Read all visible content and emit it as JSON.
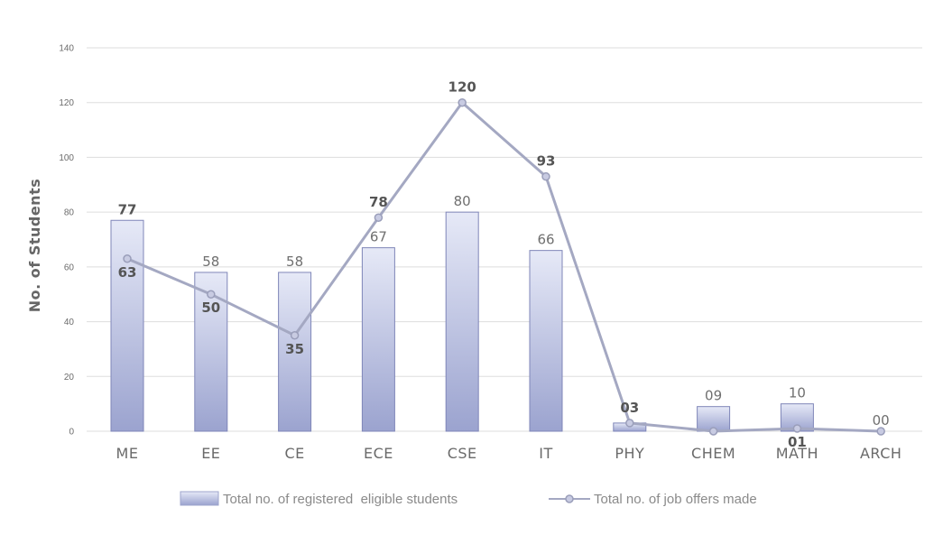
{
  "chart_data": {
    "type": "bar",
    "categories": [
      "ME",
      "EE",
      "CE",
      "ECE",
      "CSE",
      "IT",
      "PHY",
      "CHEM",
      "MATH",
      "ARCH"
    ],
    "series": [
      {
        "name": "Total no. of registered  eligible students",
        "type": "bar",
        "values": [
          77,
          58,
          58,
          67,
          80,
          66,
          3,
          9,
          10,
          0
        ],
        "labels": [
          "77",
          "58",
          "58",
          "67",
          "80",
          "66",
          "",
          "09",
          "10",
          "00"
        ]
      },
      {
        "name": "Total no. of job offers made",
        "type": "line",
        "values": [
          63,
          50,
          35,
          78,
          120,
          93,
          3,
          0,
          1,
          0
        ],
        "labels": [
          "63",
          "50",
          "35",
          "78",
          "120",
          "93",
          "03",
          "",
          "01",
          ""
        ]
      }
    ],
    "title": "",
    "xlabel": "",
    "ylabel": "No. of Students",
    "ylim": [
      0,
      140
    ],
    "yticks": [
      0,
      20,
      40,
      60,
      80,
      100,
      120,
      140
    ],
    "grid": true,
    "legend": "bottom",
    "colors": {
      "bar_top": "#e6e9f7",
      "bar_bottom": "#9ba3cf",
      "bar_stroke": "#7f86b8",
      "line": "#a4a8c2",
      "marker": "#c8cbe2",
      "marker_stroke": "#9a9eba"
    }
  }
}
